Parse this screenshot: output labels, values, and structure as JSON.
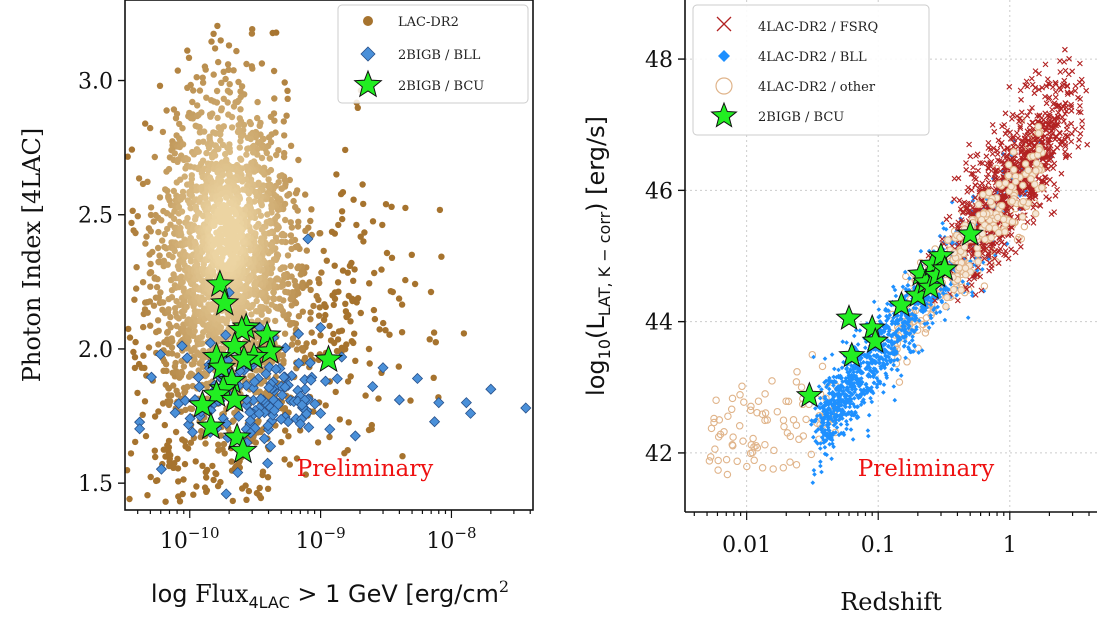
{
  "colors": {
    "lac_dark": "#a6732e",
    "lac_light": "#ecd4a2",
    "bll_fill": "#4a90d9",
    "bll_edge": "#27508a",
    "bcu_fill": "#22ee22",
    "fsrq": "#b22222",
    "bll_right": "#1e90ff",
    "other_edge": "#e0b48a",
    "prelim": "#ee1111"
  },
  "chart_data": [
    {
      "type": "scatter",
      "xscale": "log",
      "xlim": [
        3.2e-11,
        4.2e-08
      ],
      "ylim": [
        1.4,
        3.3
      ],
      "xlabel": "log Flux4LAC > 1 GeV [erg/cm2",
      "xlabel_parts": {
        "pre": "log ",
        "flux": "Flux",
        "sub": "4LAC",
        "mid": " > 1 GeV [erg/cm",
        "sup": "2"
      },
      "ylabel": "Photon Index [4LAC]",
      "x_ticks": [
        {
          "value": 1e-10,
          "base": "10",
          "exp": "−10"
        },
        {
          "value": 1e-09,
          "base": "10",
          "exp": "−9"
        },
        {
          "value": 1e-08,
          "base": "10",
          "exp": "−8"
        }
      ],
      "y_ticks": [
        {
          "value": 1.5,
          "label": "1.5"
        },
        {
          "value": 2.0,
          "label": "2.0"
        },
        {
          "value": 2.5,
          "label": "2.5"
        },
        {
          "value": 3.0,
          "label": "3.0"
        }
      ],
      "legend": {
        "placement": "top-right",
        "entries": [
          {
            "label": "LAC-DR2",
            "marker": "circle"
          },
          {
            "label": "2BIGB / BLL",
            "marker": "diamond"
          },
          {
            "label": "2BIGB / BCU",
            "marker": "star"
          }
        ]
      },
      "annotation": "Preliminary",
      "series": [
        {
          "name": "2BIGB / BCU",
          "points": [
            [
              1.7e-10,
              2.24
            ],
            [
              1.85e-10,
              2.17
            ],
            [
              2.7e-10,
              2.08
            ],
            [
              2.5e-10,
              2.07
            ],
            [
              3.9e-10,
              2.05
            ],
            [
              4.1e-10,
              1.99
            ],
            [
              2.2e-10,
              2.01
            ],
            [
              3.1e-10,
              1.97
            ],
            [
              2.6e-10,
              1.96
            ],
            [
              1.6e-10,
              1.97
            ],
            [
              1.75e-10,
              1.93
            ],
            [
              1.15e-09,
              1.96
            ],
            [
              2.1e-10,
              1.88
            ],
            [
              1.8e-10,
              1.85
            ],
            [
              1.6e-10,
              1.83
            ],
            [
              2.2e-10,
              1.81
            ],
            [
              1.25e-10,
              1.79
            ],
            [
              1.45e-10,
              1.71
            ],
            [
              2.3e-10,
              1.67
            ],
            [
              2.55e-10,
              1.62
            ]
          ]
        },
        {
          "name": "2BIGB / BLL",
          "points": [
            [
              8e-10,
              2.41
            ],
            [
              2e-10,
              2.21
            ],
            [
              1e-09,
              2.08
            ],
            [
              1.45e-09,
              1.97
            ],
            [
              3e-09,
              1.93
            ],
            [
              2e-08,
              1.85
            ],
            [
              3.7e-08,
              1.78
            ],
            [
              1.3e-08,
              1.8
            ],
            [
              8e-09,
              1.8
            ],
            [
              1.4e-08,
              1.76
            ],
            [
              1.5e-10,
              1.84
            ],
            [
              1.2e-10,
              1.75
            ],
            [
              1.05e-10,
              1.69
            ],
            [
              1.9e-10,
              1.46
            ],
            [
              6e-10,
              1.9
            ],
            [
              5e-10,
              1.86
            ],
            [
              7e-10,
              1.82
            ],
            [
              2.5e-09,
              1.86
            ],
            [
              4e-09,
              1.81
            ],
            [
              5.5e-09,
              1.89
            ],
            [
              1e-09,
              1.76
            ],
            [
              2.9e-10,
              1.72
            ],
            [
              4e-10,
              1.7
            ],
            [
              6.5e-10,
              1.74
            ],
            [
              2.6e-10,
              1.92
            ],
            [
              3.4e-10,
              1.78
            ]
          ]
        }
      ]
    },
    {
      "type": "scatter",
      "xscale": "log",
      "xlim": [
        0.0034,
        4.6
      ],
      "ylim": [
        41.1,
        48.9
      ],
      "xlabel": "Redshift",
      "ylabel": "log10(LLAT, K − corr) [erg/s]",
      "ylabel_parts": {
        "pre": "log",
        "sub1": "10",
        "open": "(L",
        "sub2": "LAT, K − corr",
        "close": ") [erg/s]"
      },
      "x_ticks": [
        {
          "value": 0.01,
          "label": "0.01"
        },
        {
          "value": 0.1,
          "label": "0.1"
        },
        {
          "value": 1,
          "label": "1"
        }
      ],
      "y_ticks": [
        {
          "value": 42,
          "label": "42"
        },
        {
          "value": 44,
          "label": "44"
        },
        {
          "value": 46,
          "label": "46"
        },
        {
          "value": 48,
          "label": "48"
        }
      ],
      "grid": true,
      "legend": {
        "placement": "top-left",
        "entries": [
          {
            "label": "4LAC-DR2 / FSRQ",
            "marker": "x"
          },
          {
            "label": "4LAC-DR2 / BLL",
            "marker": "diamond"
          },
          {
            "label": "4LAC-DR2 / other",
            "marker": "open-circle"
          },
          {
            "label": "2BIGB / BCU",
            "marker": "star"
          }
        ]
      },
      "annotation": "Preliminary",
      "series": [
        {
          "name": "2BIGB / BCU",
          "points": [
            [
              0.03,
              42.87
            ],
            [
              0.06,
              44.05
            ],
            [
              0.063,
              43.48
            ],
            [
              0.09,
              43.9
            ],
            [
              0.095,
              43.7
            ],
            [
              0.15,
              44.25
            ],
            [
              0.2,
              44.4
            ],
            [
              0.21,
              44.72
            ],
            [
              0.23,
              44.6
            ],
            [
              0.25,
              44.52
            ],
            [
              0.26,
              44.87
            ],
            [
              0.28,
              44.7
            ],
            [
              0.3,
              45.0
            ],
            [
              0.32,
              44.8
            ],
            [
              0.5,
              45.33
            ]
          ]
        }
      ]
    }
  ]
}
